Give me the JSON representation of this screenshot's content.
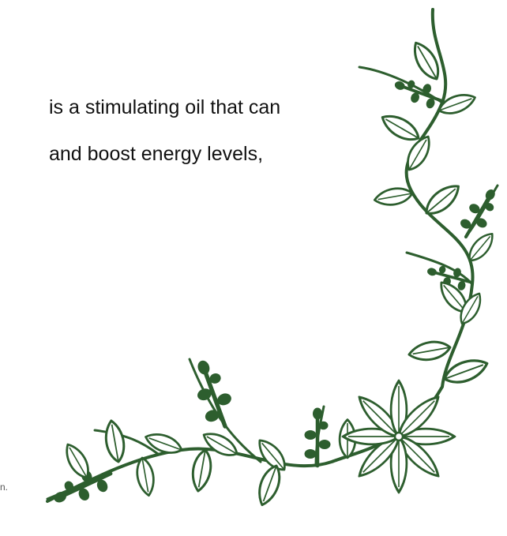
{
  "text_lines": [
    "is a stimulating oil that can",
    "and boost energy levels,"
  ],
  "footnote": "n."
}
